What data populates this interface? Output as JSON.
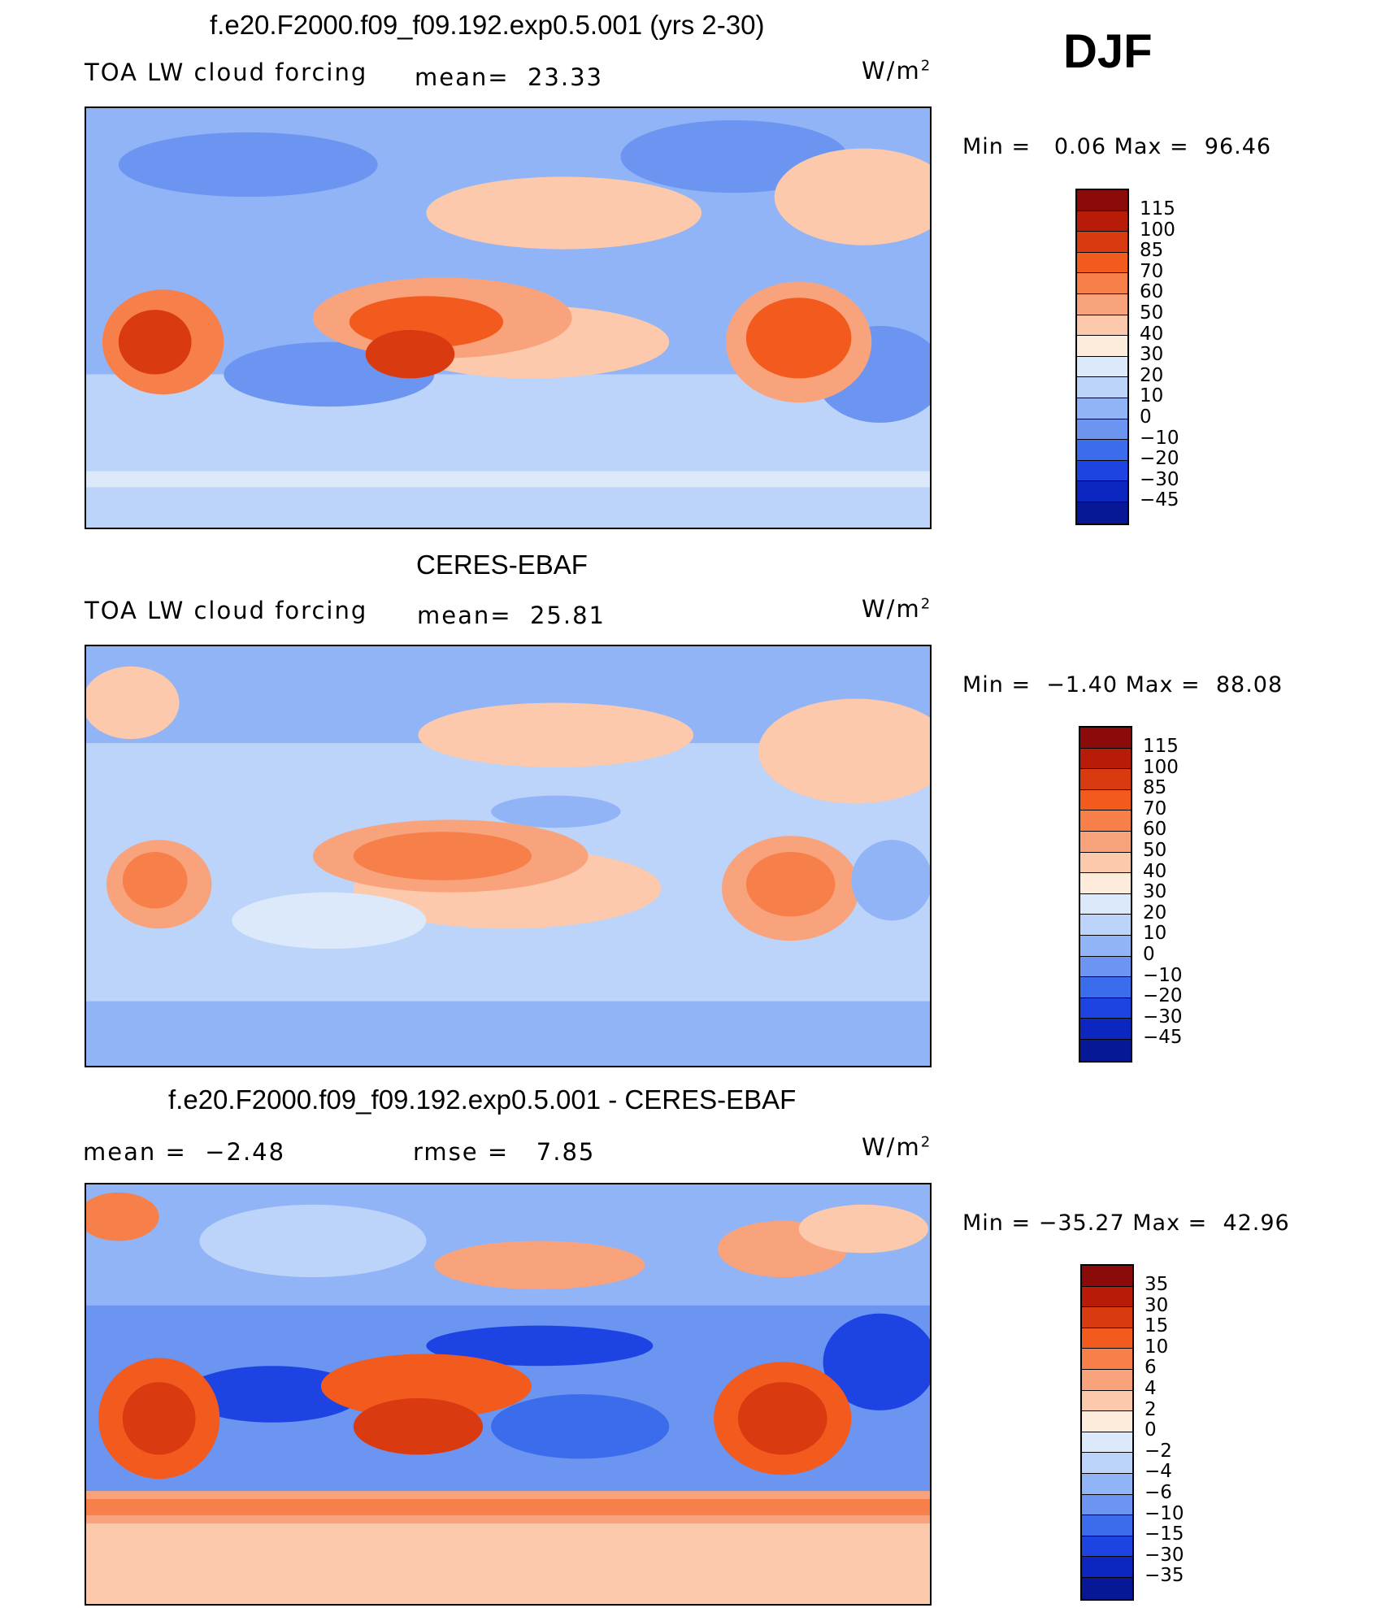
{
  "season": "DJF",
  "panels": [
    {
      "title": "f.e20.F2000.f09_f09.192.exp0.5.001 (yrs 2-30)",
      "left_label": "TOA LW cloud forcing",
      "mean_label": "mean=",
      "mean_value": "23.33",
      "units": "W/m",
      "units_exp": "2",
      "min_label": "Min =",
      "min_value": "0.06",
      "max_label": "Max =",
      "max_value": "96.46",
      "colorbar": {
        "labels": [
          "115",
          "100",
          "85",
          "70",
          "60",
          "50",
          "40",
          "30",
          "20",
          "10",
          "0",
          "−10",
          "−20",
          "−30",
          "−45"
        ],
        "colors": [
          "#8b0a0a",
          "#b81c08",
          "#d93a10",
          "#f25a1e",
          "#f67f4a",
          "#f9a37d",
          "#fcc9ac",
          "#fdebdc",
          "#dbe9fb",
          "#bcd3fa",
          "#91b4f6",
          "#6b95f1",
          "#3b6ceb",
          "#1d43e3",
          "#0b27bf",
          "#061895"
        ]
      }
    },
    {
      "title": "CERES-EBAF",
      "left_label": "TOA LW cloud forcing",
      "mean_label": "mean=",
      "mean_value": "25.81",
      "units": "W/m",
      "units_exp": "2",
      "min_label": "Min =",
      "min_value": "−1.40",
      "max_label": "Max =",
      "max_value": "88.08",
      "colorbar": {
        "labels": [
          "115",
          "100",
          "85",
          "70",
          "60",
          "50",
          "40",
          "30",
          "20",
          "10",
          "0",
          "−10",
          "−20",
          "−30",
          "−45"
        ],
        "colors": [
          "#8b0a0a",
          "#b81c08",
          "#d93a10",
          "#f25a1e",
          "#f67f4a",
          "#f9a37d",
          "#fcc9ac",
          "#fdebdc",
          "#dbe9fb",
          "#bcd3fa",
          "#91b4f6",
          "#6b95f1",
          "#3b6ceb",
          "#1d43e3",
          "#0b27bf",
          "#061895"
        ]
      }
    },
    {
      "title": "f.e20.F2000.f09_f09.192.exp0.5.001 - CERES-EBAF",
      "mean_label": "mean =",
      "mean_value": "−2.48",
      "rmse_label": "rmse =",
      "rmse_value": "7.85",
      "units": "W/m",
      "units_exp": "2",
      "min_label": "Min =",
      "min_value": "−35.27",
      "max_label": "Max =",
      "max_value": "42.96",
      "colorbar": {
        "labels": [
          "35",
          "30",
          "15",
          "10",
          "6",
          "4",
          "2",
          "0",
          "−2",
          "−4",
          "−6",
          "−10",
          "−15",
          "−30",
          "−35"
        ],
        "colors": [
          "#8b0a0a",
          "#b81c08",
          "#d93a10",
          "#f25a1e",
          "#f67f4a",
          "#f9a37d",
          "#fcc9ac",
          "#fdebdc",
          "#dbe9fb",
          "#bcd3fa",
          "#91b4f6",
          "#6b95f1",
          "#3b6ceb",
          "#1d43e3",
          "#0b27bf",
          "#061895"
        ]
      }
    }
  ]
}
